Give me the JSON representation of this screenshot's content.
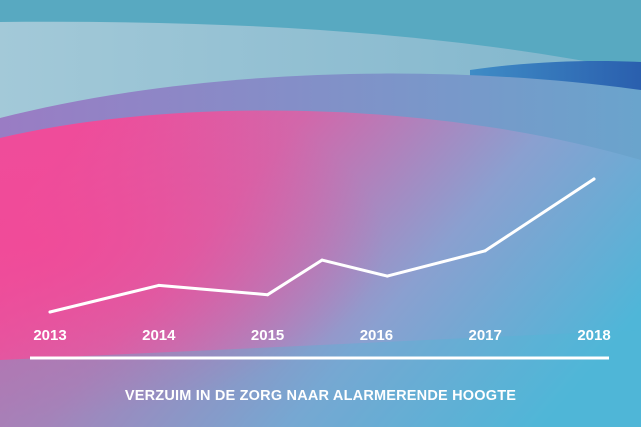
{
  "caption": "VERZUIM IN DE ZORG NAAR ALARMERENDE HOOGTE",
  "colors": {
    "line": "#ffffff",
    "teal": "#58a9c1",
    "pink": "#ee4d9b",
    "purple": "#8c82c6",
    "blue": "#4fb4d8",
    "deep_blue": "#2f6fb7"
  },
  "chart_data": {
    "type": "line",
    "title": "VERZUIM IN DE ZORG NAAR ALARMERENDE HOOGTE",
    "xlabel": "",
    "ylabel": "",
    "x_tick_labels": [
      "2013",
      "2014",
      "2015",
      "2016",
      "2017",
      "2018"
    ],
    "xlim": [
      2013,
      2018
    ],
    "ylim": [
      0,
      10
    ],
    "grid": false,
    "legend": "none",
    "series": [
      {
        "x": [
          2013.0,
          2014.0,
          2015.0,
          2015.5,
          2016.1,
          2017.0,
          2018.0
        ],
        "y": [
          0.0,
          2.0,
          1.3,
          3.9,
          2.7,
          4.6,
          10.0
        ]
      }
    ]
  }
}
